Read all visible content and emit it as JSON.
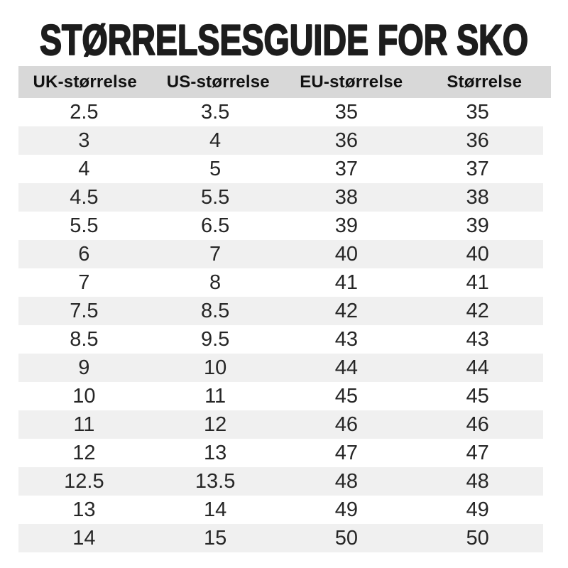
{
  "chart_data": {
    "type": "table",
    "title": "STØRRELSESGUIDE FOR SKO",
    "columns": [
      "UK-størrelse",
      "US-størrelse",
      "EU-størrelse",
      "Størrelse"
    ],
    "rows": [
      [
        "2.5",
        "3.5",
        "35",
        "35"
      ],
      [
        "3",
        "4",
        "36",
        "36"
      ],
      [
        "4",
        "5",
        "37",
        "37"
      ],
      [
        "4.5",
        "5.5",
        "38",
        "38"
      ],
      [
        "5.5",
        "6.5",
        "39",
        "39"
      ],
      [
        "6",
        "7",
        "40",
        "40"
      ],
      [
        "7",
        "8",
        "41",
        "41"
      ],
      [
        "7.5",
        "8.5",
        "42",
        "42"
      ],
      [
        "8.5",
        "9.5",
        "43",
        "43"
      ],
      [
        "9",
        "10",
        "44",
        "44"
      ],
      [
        "10",
        "11",
        "45",
        "45"
      ],
      [
        "11",
        "12",
        "46",
        "46"
      ],
      [
        "12",
        "13",
        "47",
        "47"
      ],
      [
        "12.5",
        "13.5",
        "48",
        "48"
      ],
      [
        "13",
        "14",
        "49",
        "49"
      ],
      [
        "14",
        "15",
        "50",
        "50"
      ]
    ],
    "layout": {
      "zebra_striping": "even rows shaded",
      "alignment": "center"
    }
  },
  "colors": {
    "page_bg": "#ffffff",
    "title_text": "#1d1d1d",
    "header_bg": "#d8d8d8",
    "header_text": "#111111",
    "row_alt_bg": "#f0f0f0",
    "cell_text": "#262626"
  }
}
